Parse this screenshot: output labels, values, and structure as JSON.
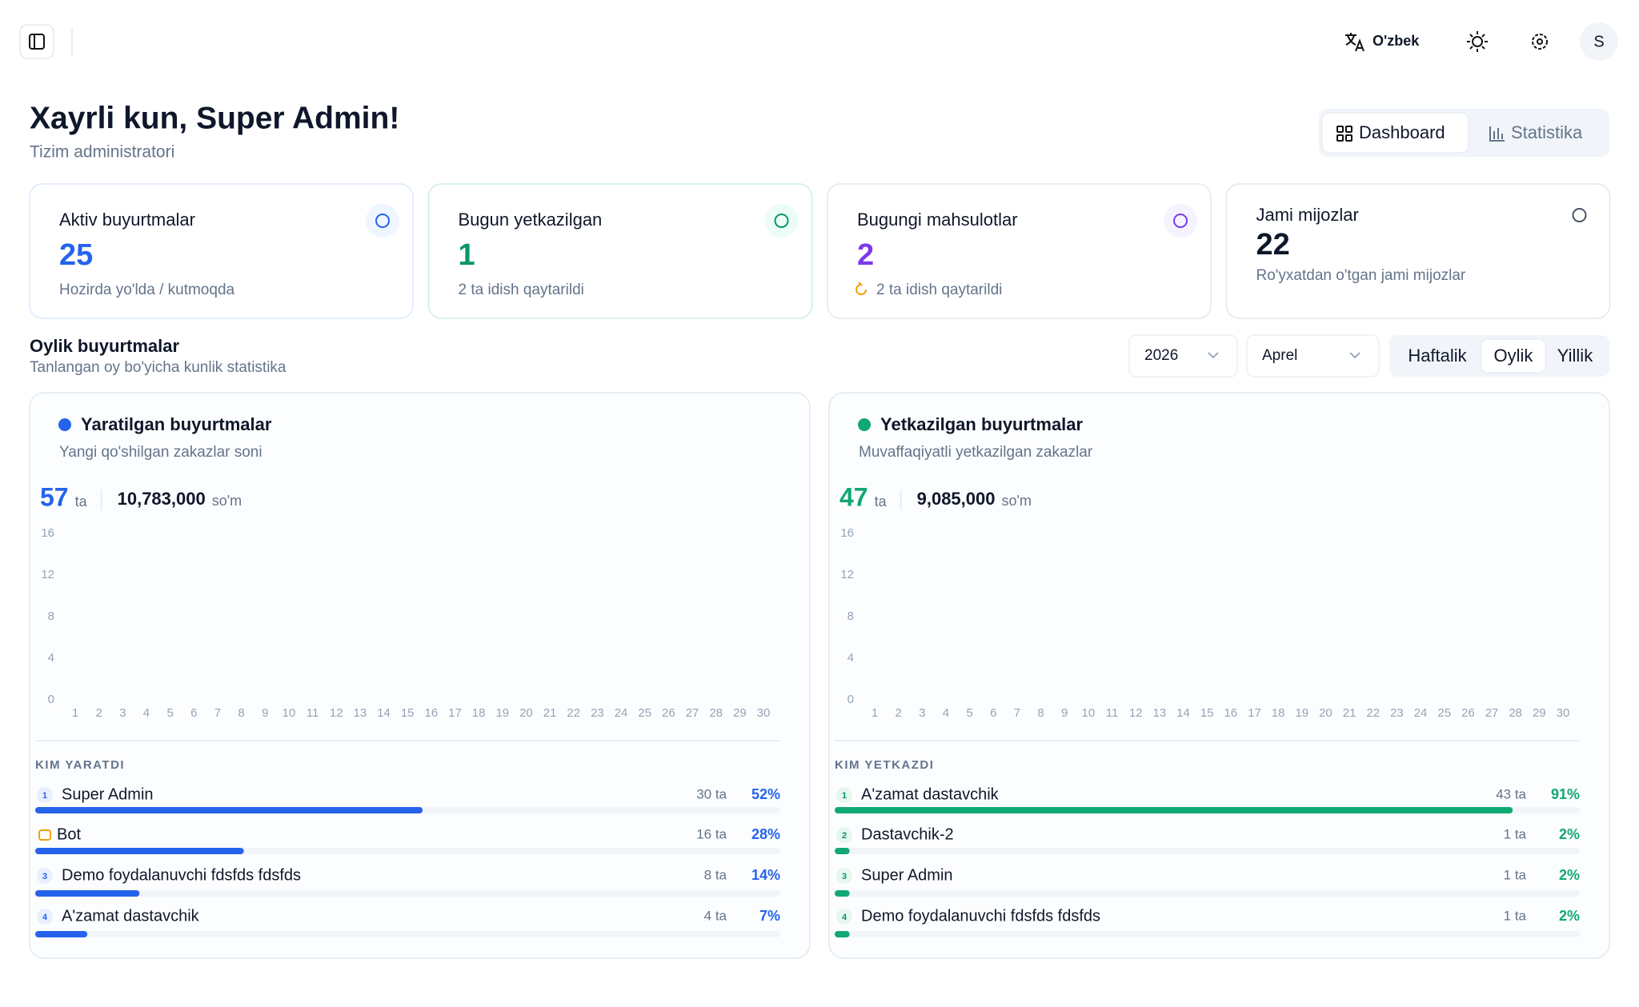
{
  "header": {
    "language": "O'zbek",
    "avatar": "S"
  },
  "greeting": {
    "title": "Xayrli kun, Super Admin!",
    "subtitle": "Tizim administratori"
  },
  "tabs": [
    "Dashboard",
    "Statistika"
  ],
  "cards": [
    {
      "title": "Aktiv buyurtmalar",
      "value": 25,
      "note": "Hozirda yo'lda / kutmoqda",
      "color": "#2563eb"
    },
    {
      "title": "Bugun yetkazilgan",
      "value": 1,
      "note": "2 ta idish qaytarildi",
      "color": "#059669"
    },
    {
      "title": "Bugungi mahsulotlar",
      "value": 2,
      "note": "2 ta idish qaytarildi",
      "color": "#7c3aed"
    },
    {
      "title": "Jami mijozlar",
      "value": 22,
      "note": "Ro'yxatdan o'tgan jami mijozlar",
      "color": "#0f172a"
    }
  ],
  "section": {
    "title": "Oylik buyurtmalar",
    "subtitle": "Tanlangan oy bo'yicha kunlik statistika",
    "year": "2026",
    "month": "Aprel",
    "periods": [
      "Haftalik",
      "Oylik",
      "Yillik"
    ]
  },
  "panels": [
    {
      "title": "Yaratilgan buyurtmalar",
      "subtitle": "Yangi qo'shilgan zakazlar soni",
      "count": 57,
      "count_unit": "ta",
      "amount": "10,783,000",
      "amount_unit": "so'm",
      "color": "#2563eb",
      "chart": {
        "type": "bar",
        "categories": [
          1,
          2,
          3,
          4,
          5,
          6,
          7,
          8,
          9,
          10,
          11,
          12,
          13,
          14,
          15,
          16,
          17,
          18,
          19,
          20,
          21,
          22,
          23,
          24,
          25,
          26,
          27,
          28,
          29,
          30
        ],
        "ylim": [
          0,
          16
        ],
        "yticks": [
          0,
          4,
          8,
          12,
          16
        ]
      },
      "list_title": "KIM YARATDI",
      "rows": [
        {
          "rank": 1,
          "name": "Super Admin",
          "count": "30 ta",
          "percent": 52,
          "percent_label": "52%"
        },
        {
          "name": "Bot",
          "count": "16 ta",
          "percent": 28,
          "percent_label": "28%"
        },
        {
          "rank": 3,
          "name": "Demo foydalanuvchi fdsfds fdsfds",
          "count": "8 ta",
          "percent": 14,
          "percent_label": "14%"
        },
        {
          "rank": 4,
          "name": "A'zamat dastavchik",
          "count": "4 ta",
          "percent": 7,
          "percent_label": "7%"
        }
      ]
    },
    {
      "title": "Yetkazilgan buyurtmalar",
      "subtitle": "Muvaffaqiyatli yetkazilgan zakazlar",
      "count": 47,
      "count_unit": "ta",
      "amount": "9,085,000",
      "amount_unit": "so'm",
      "color": "#10a873",
      "chart": {
        "type": "bar",
        "categories": [
          1,
          2,
          3,
          4,
          5,
          6,
          7,
          8,
          9,
          10,
          11,
          12,
          13,
          14,
          15,
          16,
          17,
          18,
          19,
          20,
          21,
          22,
          23,
          24,
          25,
          26,
          27,
          28,
          29,
          30
        ],
        "ylim": [
          0,
          16
        ],
        "yticks": [
          0,
          4,
          8,
          12,
          16
        ]
      },
      "list_title": "KIM YETKAZDI",
      "rows": [
        {
          "rank": 1,
          "name": "A'zamat dastavchik",
          "count": "43 ta",
          "percent": 91,
          "percent_label": "91%"
        },
        {
          "rank": 2,
          "name": "Dastavchik-2",
          "count": "1 ta",
          "percent": 2,
          "percent_label": "2%"
        },
        {
          "rank": 3,
          "name": "Super Admin",
          "count": "1 ta",
          "percent": 2,
          "percent_label": "2%"
        },
        {
          "rank": 4,
          "name": "Demo foydalanuvchi fdsfds fdsfds",
          "count": "1 ta",
          "percent": 2,
          "percent_label": "2%"
        }
      ]
    }
  ]
}
